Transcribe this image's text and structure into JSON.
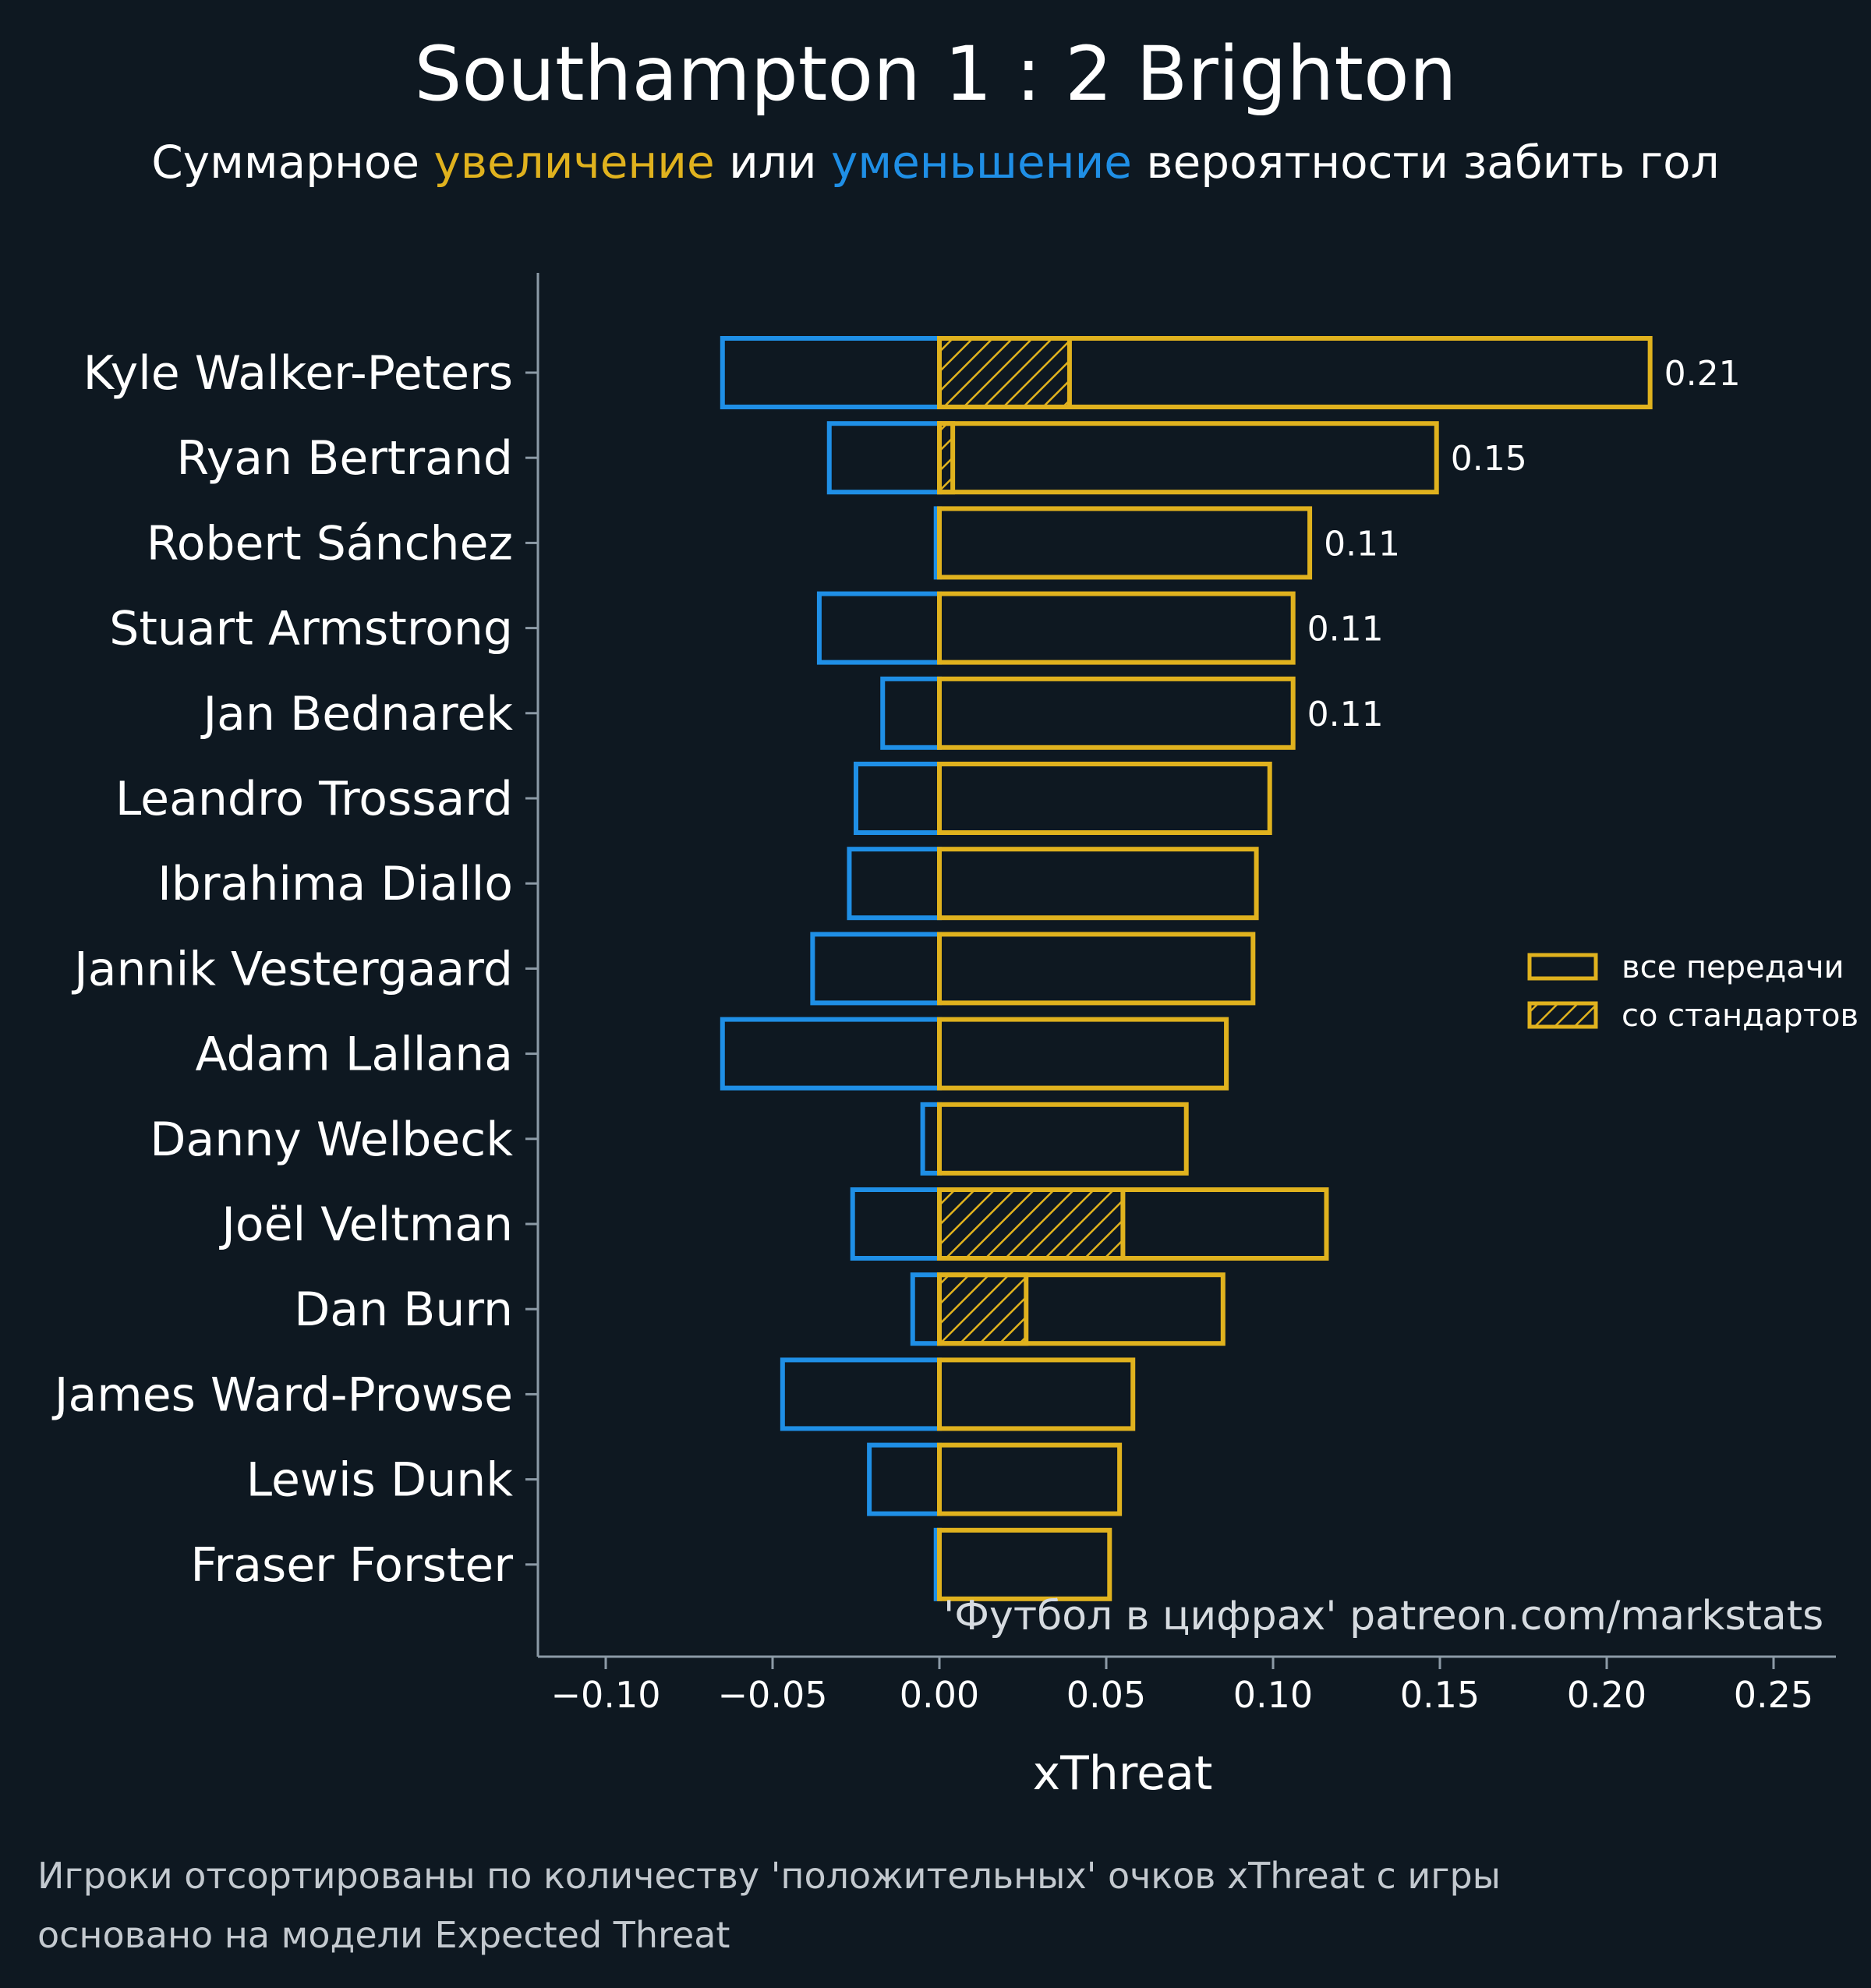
{
  "colors": {
    "background": "#0e1821",
    "positive": "#e0b21e",
    "negative": "#1f8fe6",
    "text": "#ffffff",
    "axis": "#8c9aa6"
  },
  "title_parts": {
    "team_home": "Southampton",
    "score": "1 : 2",
    "team_away": "Brighton"
  },
  "subtitle_parts": {
    "prefix": "Суммарное ",
    "increase": "увеличение",
    "middle": " или ",
    "decrease": "уменьшение",
    "suffix": " вероятности забить гол"
  },
  "credit": "'Футбол в цифрах' patreon.com/markstats",
  "footnote": {
    "line1": "Игроки отсортированы по количеству 'положительных' очков xThreat с игры",
    "line2": "основано на модели Expected Threat"
  },
  "chart_data": {
    "type": "bar",
    "orientation": "horizontal",
    "title": "Southampton 1 : 2 Brighton",
    "subtitle": "Суммарное увеличение или уменьшение вероятности забить гол",
    "xlabel": "xThreat",
    "ylabel": "",
    "xlim": [
      -0.12,
      0.27
    ],
    "xticks": [
      -0.1,
      -0.05,
      0.0,
      0.05,
      0.1,
      0.15,
      0.2,
      0.25
    ],
    "xtick_labels": [
      "−0.10",
      "−0.05",
      "0.00",
      "0.05",
      "0.10",
      "0.15",
      "0.20",
      "0.25"
    ],
    "legend": {
      "placement": "right",
      "entries": [
        "все передачи",
        "со стандартов"
      ]
    },
    "categories": [
      "Kyle Walker-Peters",
      "Ryan Bertrand",
      "Robert Sánchez",
      "Stuart Armstrong",
      "Jan Bednarek",
      "Leandro Trossard",
      "Ibrahima Diallo",
      "Jannik Vestergaard",
      "Adam Lallana",
      "Danny Welbeck",
      "Joël Veltman",
      "Dan Burn",
      "James Ward-Prowse",
      "Lewis Dunk",
      "Fraser Forster"
    ],
    "series": [
      {
        "name": "все передачи (положительные)",
        "values": [
          0.213,
          0.149,
          0.111,
          0.106,
          0.106,
          0.099,
          0.095,
          0.094,
          0.086,
          0.074,
          0.116,
          0.085,
          0.058,
          0.054,
          0.051
        ]
      },
      {
        "name": "все передачи (отрицательные)",
        "values": [
          -0.065,
          -0.033,
          -0.001,
          -0.036,
          -0.017,
          -0.025,
          -0.027,
          -0.038,
          -0.065,
          -0.005,
          -0.026,
          -0.008,
          -0.047,
          -0.021,
          -0.001
        ]
      },
      {
        "name": "со стандартов",
        "values": [
          0.039,
          0.004,
          0,
          0,
          0,
          0,
          0,
          0,
          0,
          0,
          0.055,
          0.026,
          0,
          0,
          0
        ]
      }
    ],
    "value_labels": [
      "0.21",
      "0.15",
      "0.11",
      "0.11",
      "0.11",
      "",
      "",
      "",
      "",
      "",
      "",
      "",
      "",
      "",
      ""
    ]
  }
}
